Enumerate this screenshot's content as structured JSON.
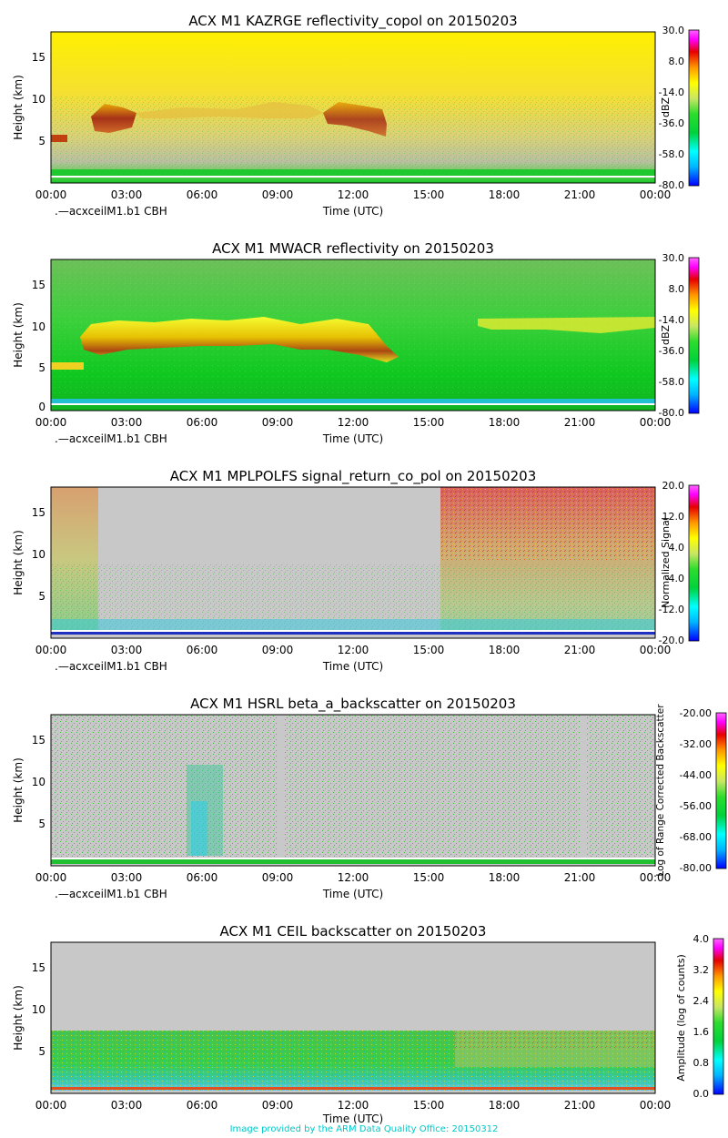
{
  "footer": {
    "credit": "Image provided by the ARM Data Quality Office: 20150312"
  },
  "chart_data": [
    {
      "type": "heatmap",
      "title": "ACX M1 KAZRGE reflectivity_copol on 20150203",
      "xlabel": "Time (UTC)",
      "ylabel": "Height (km)",
      "x_ticks": [
        "00:00",
        "03:00",
        "06:00",
        "09:00",
        "12:00",
        "15:00",
        "18:00",
        "21:00",
        "00:00"
      ],
      "y_ticks": [
        "5",
        "10",
        "15"
      ],
      "ylim": [
        0,
        18
      ],
      "overlay_label": ".—acxceilM1.b1 CBH",
      "colorbar": {
        "label": "dBZ",
        "ticks": [
          "30.0",
          "8.0",
          "-14.0",
          "-36.0",
          "-58.0",
          "-80.0"
        ]
      }
    },
    {
      "type": "heatmap",
      "title": "ACX M1 MWACR reflectivity on 20150203",
      "xlabel": "Time (UTC)",
      "ylabel": "Height (km)",
      "x_ticks": [
        "00:00",
        "03:00",
        "06:00",
        "09:00",
        "12:00",
        "15:00",
        "18:00",
        "21:00",
        "00:00"
      ],
      "y_ticks": [
        "0",
        "5",
        "10",
        "15"
      ],
      "ylim": [
        0,
        18
      ],
      "overlay_label": ".—acxceilM1.b1 CBH",
      "colorbar": {
        "label": "dBZ",
        "ticks": [
          "30.0",
          "8.0",
          "-14.0",
          "-36.0",
          "-58.0",
          "-80.0"
        ]
      }
    },
    {
      "type": "heatmap",
      "title": "ACX M1 MPLPOLFS signal_return_co_pol on 20150203",
      "xlabel": "Time (UTC)",
      "ylabel": "Height (km)",
      "x_ticks": [
        "00:00",
        "03:00",
        "06:00",
        "09:00",
        "12:00",
        "15:00",
        "18:00",
        "21:00",
        "00:00"
      ],
      "y_ticks": [
        "5",
        "10",
        "15"
      ],
      "ylim": [
        0,
        18
      ],
      "overlay_label": ".—acxceilM1.b1 CBH",
      "colorbar": {
        "label": "Normalized Signal",
        "ticks": [
          "20.0",
          "12.0",
          "4.0",
          "-4.0",
          "-12.0",
          "-20.0"
        ]
      }
    },
    {
      "type": "heatmap",
      "title": "ACX M1 HSRL beta_a_backscatter on 20150203",
      "xlabel": "Time (UTC)",
      "ylabel": "Height (km)",
      "x_ticks": [
        "00:00",
        "03:00",
        "06:00",
        "09:00",
        "12:00",
        "15:00",
        "18:00",
        "21:00",
        "00:00"
      ],
      "y_ticks": [
        "5",
        "10",
        "15"
      ],
      "ylim": [
        0,
        18
      ],
      "overlay_label": ".—acxceilM1.b1 CBH",
      "colorbar": {
        "label": "Log of Range Corrected Backscatter",
        "ticks": [
          "-20.00",
          "-32.00",
          "-44.00",
          "-56.00",
          "-68.00",
          "-80.00"
        ]
      }
    },
    {
      "type": "heatmap",
      "title": "ACX M1 CEIL backscatter on 20150203",
      "xlabel": "Time (UTC)",
      "ylabel": "Height (km)",
      "x_ticks": [
        "00:00",
        "03:00",
        "06:00",
        "09:00",
        "12:00",
        "15:00",
        "18:00",
        "21:00",
        "00:00"
      ],
      "y_ticks": [
        "5",
        "10",
        "15"
      ],
      "ylim": [
        0,
        18
      ],
      "overlay_label": "",
      "colorbar": {
        "label": "Amplitude (log of counts)",
        "ticks": [
          "4.0",
          "3.2",
          "2.4",
          "1.6",
          "0.8",
          "0.0"
        ]
      }
    }
  ]
}
